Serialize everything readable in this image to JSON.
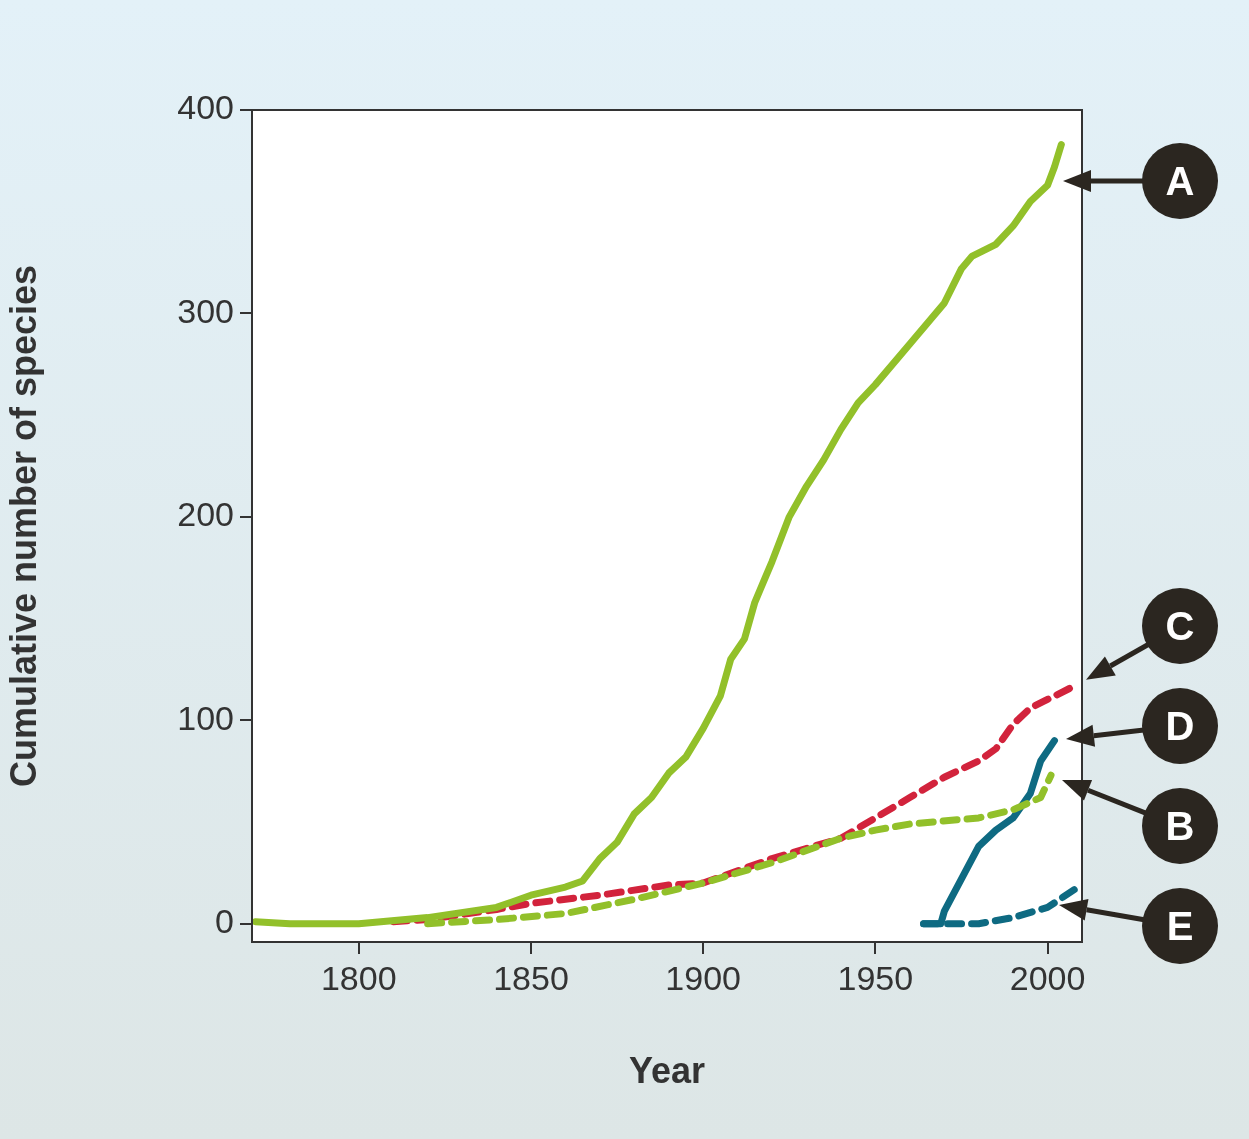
{
  "chart_data": {
    "type": "line",
    "xlabel": "Year",
    "ylabel": "Cumulative number of species",
    "xlim": [
      1769,
      2010
    ],
    "xticks": [
      1800,
      1850,
      1900,
      1950,
      2000
    ],
    "ylim": [
      -9,
      400
    ],
    "yticks": [
      0,
      100,
      200,
      300,
      400
    ],
    "series": [
      {
        "color": "#92c02a",
        "line_style": "solid",
        "x": [
          1770,
          1780,
          1800,
          1820,
          1840,
          1850,
          1860,
          1865,
          1870,
          1875,
          1880,
          1885,
          1890,
          1895,
          1900,
          1905,
          1908,
          1912,
          1915,
          1920,
          1925,
          1930,
          1935,
          1940,
          1945,
          1950,
          1960,
          1970,
          1975,
          1978,
          1985,
          1990,
          1995,
          2000,
          2002,
          2004
        ],
        "values": [
          1,
          0,
          0,
          3,
          8,
          14,
          18,
          21,
          32,
          40,
          54,
          62,
          74,
          82,
          96,
          112,
          130,
          140,
          158,
          178,
          200,
          215,
          228,
          243,
          256,
          265,
          285,
          305,
          322,
          328,
          334,
          343,
          355,
          363,
          372,
          383
        ]
      },
      {
        "color": "#92c02a",
        "line_style": "dashed",
        "x": [
          1820,
          1840,
          1860,
          1880,
          1900,
          1920,
          1940,
          1950,
          1960,
          1980,
          1990,
          1998,
          2001
        ],
        "values": [
          0,
          2,
          5,
          12,
          20,
          30,
          42,
          46,
          49,
          52,
          56,
          62,
          73
        ]
      },
      {
        "color": "#d2233c",
        "line_style": "dashed",
        "x": [
          1810,
          1820,
          1840,
          1850,
          1870,
          1890,
          1900,
          1920,
          1940,
          1950,
          1960,
          1970,
          1980,
          1985,
          1990,
          1995,
          2008
        ],
        "values": [
          1,
          2,
          7,
          10,
          14,
          19,
          20,
          32,
          42,
          52,
          62,
          72,
          80,
          86,
          98,
          106,
          117
        ]
      },
      {
        "color": "#0e6a82",
        "line_style": "solid",
        "x": [
          1964,
          1969,
          1970,
          1975,
          1980,
          1985,
          1990,
          1995,
          1998,
          2002
        ],
        "values": [
          0,
          0,
          6,
          22,
          38,
          46,
          52,
          64,
          80,
          90
        ]
      },
      {
        "color": "#0e6a82",
        "line_style": "dashed",
        "x": [
          1964,
          1970,
          1980,
          1990,
          2000,
          2008
        ],
        "values": [
          0,
          0,
          0,
          3,
          8,
          17
        ]
      }
    ],
    "annotations": [
      {
        "text": "A",
        "x": 2001,
        "y": 365
      },
      {
        "text": "C",
        "x": 2008,
        "y": 117
      },
      {
        "text": "D",
        "x": 2002,
        "y": 90
      },
      {
        "text": "B",
        "x": 2001,
        "y": 73
      },
      {
        "text": "E",
        "x": 2000,
        "y": 10
      }
    ]
  }
}
